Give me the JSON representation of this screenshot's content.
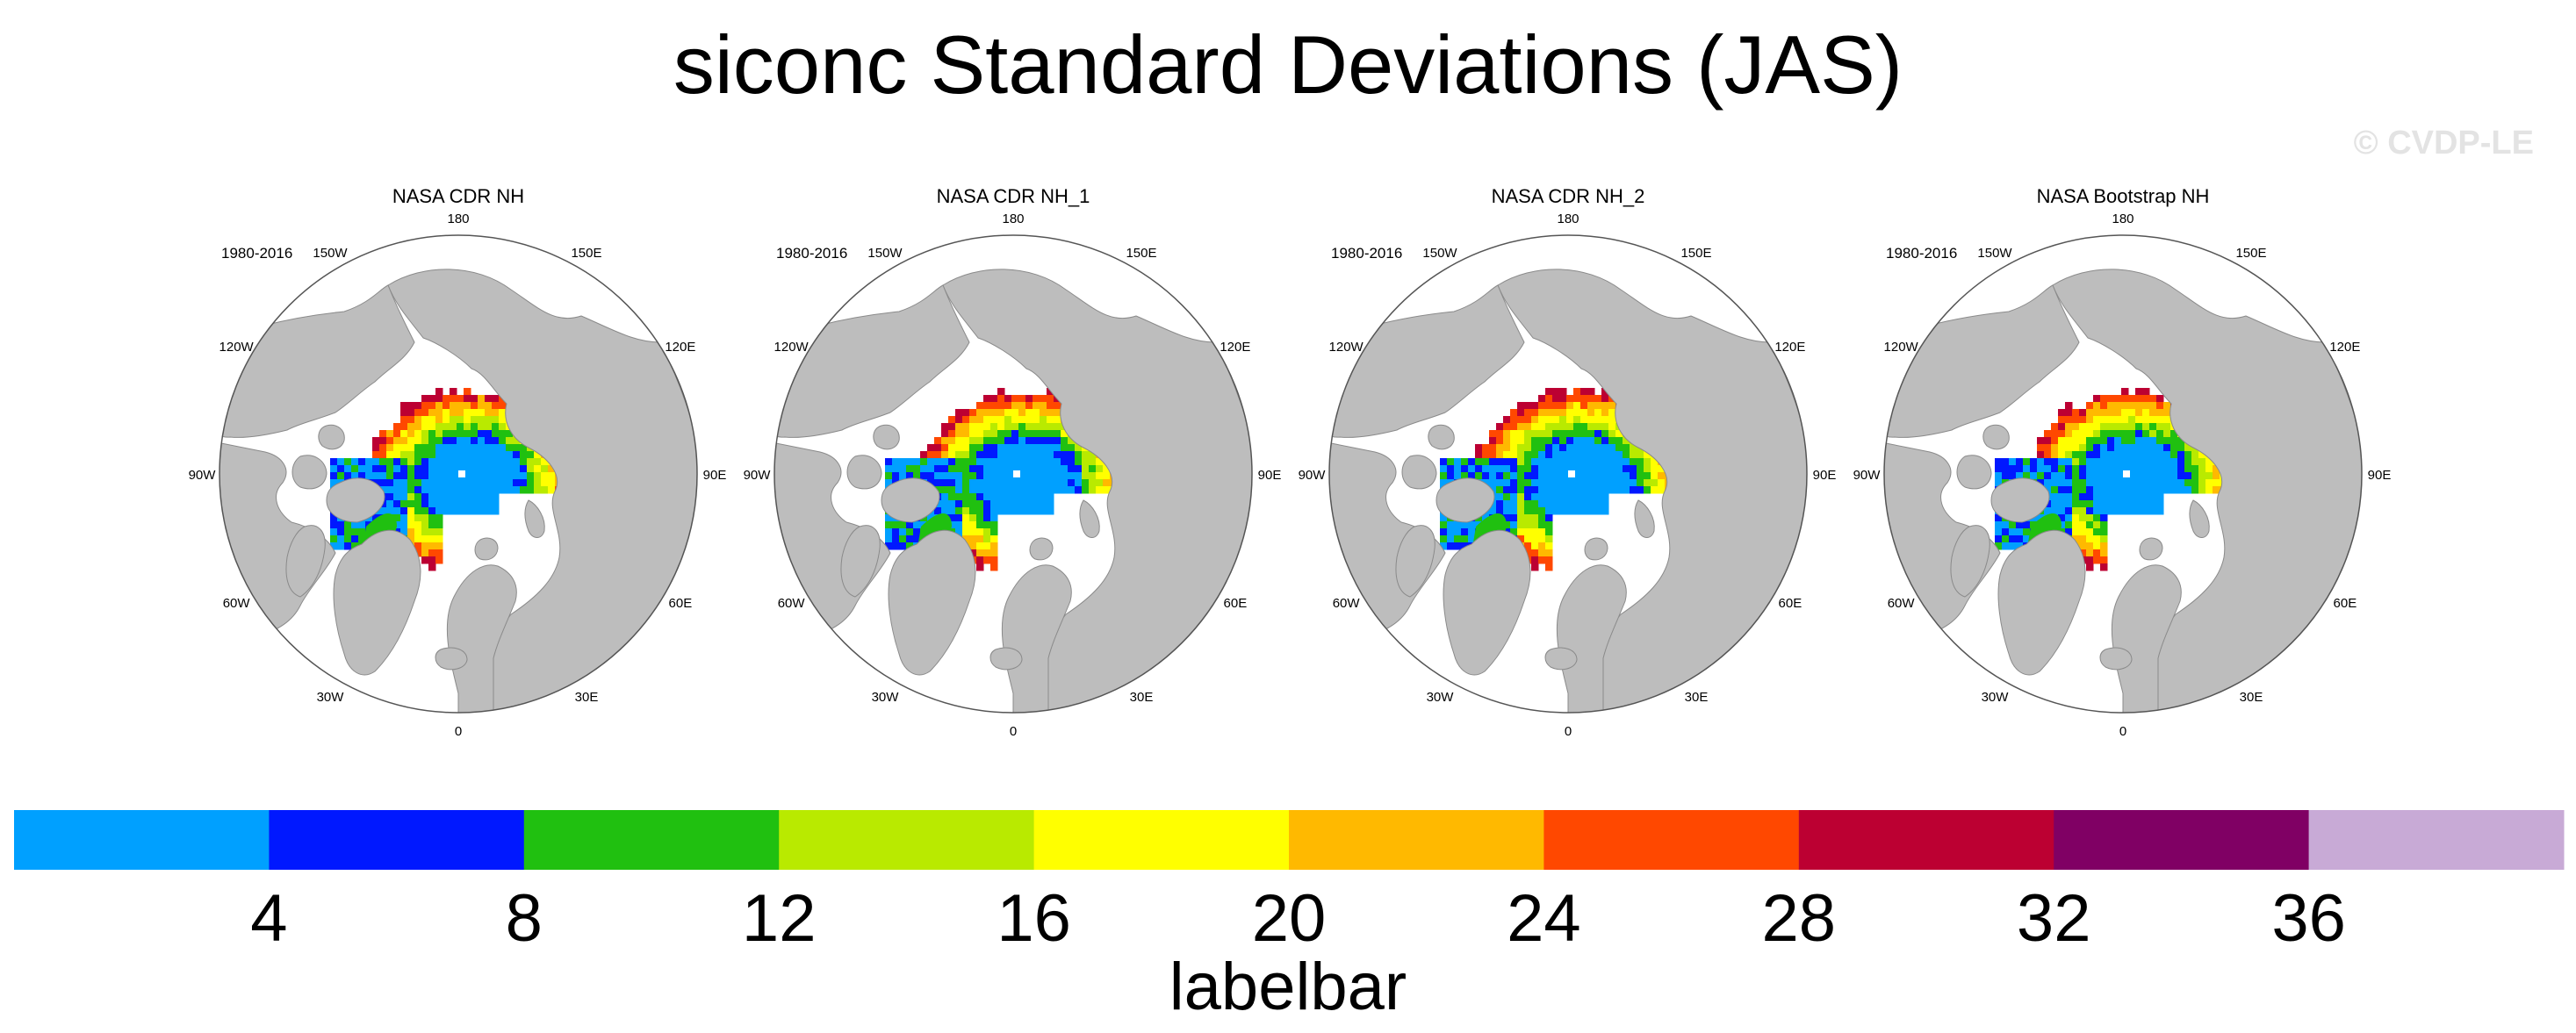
{
  "title": "siconc Standard Deviations (JAS)",
  "watermark": "© CVDP-LE",
  "colors": {
    "land": "#bdbdbd",
    "ocean": "#ffffff",
    "scale": [
      "#00a0ff",
      "#0018ff",
      "#20c010",
      "#b9ea00",
      "#ffff00",
      "#ffb900",
      "#ff4800",
      "#bc0032",
      "#800064",
      "#c8aad6"
    ]
  },
  "panels": [
    {
      "title": "NASA CDR NH",
      "period": "1980-2016"
    },
    {
      "title": "NASA CDR NH_1",
      "period": "1980-2016"
    },
    {
      "title": "NASA CDR NH_2",
      "period": "1980-2016"
    },
    {
      "title": "NASA Bootstrap NH",
      "period": "1980-2016"
    }
  ],
  "lon_labels": [
    {
      "lon": 180,
      "text": "180"
    },
    {
      "lon": 150,
      "text": "150E"
    },
    {
      "lon": 120,
      "text": "120E"
    },
    {
      "lon": 90,
      "text": "90E"
    },
    {
      "lon": 60,
      "text": "60E"
    },
    {
      "lon": 30,
      "text": "30E"
    },
    {
      "lon": 0,
      "text": "0"
    },
    {
      "lon": -30,
      "text": "30W"
    },
    {
      "lon": -60,
      "text": "60W"
    },
    {
      "lon": -90,
      "text": "90W"
    },
    {
      "lon": -120,
      "text": "120W"
    },
    {
      "lon": -150,
      "text": "150W"
    }
  ],
  "labelbar": {
    "title": "labelbar",
    "ticks": [
      4,
      8,
      12,
      16,
      20,
      24,
      28,
      32,
      36
    ]
  },
  "chart_data": {
    "type": "heatmap",
    "title": "siconc Standard Deviations (JAS)",
    "variable": "siconc",
    "season": "JAS",
    "projection": "north polar stereographic",
    "panels": [
      "NASA CDR NH",
      "NASA CDR NH_1",
      "NASA CDR NH_2",
      "NASA Bootstrap NH"
    ],
    "period": "1980-2016",
    "contour_levels": [
      4,
      8,
      12,
      16,
      20,
      24,
      28,
      32,
      36
    ],
    "colorbar_label": "labelbar",
    "pattern": "std dev < 4 in central Arctic pack (0-8 over Canadian Archipelago and Baffin/Greenland), rising outward to 20-32 at the summer ice edge in the Beaufort, Chukchi, East Siberian, Laptev and Kara seas"
  }
}
